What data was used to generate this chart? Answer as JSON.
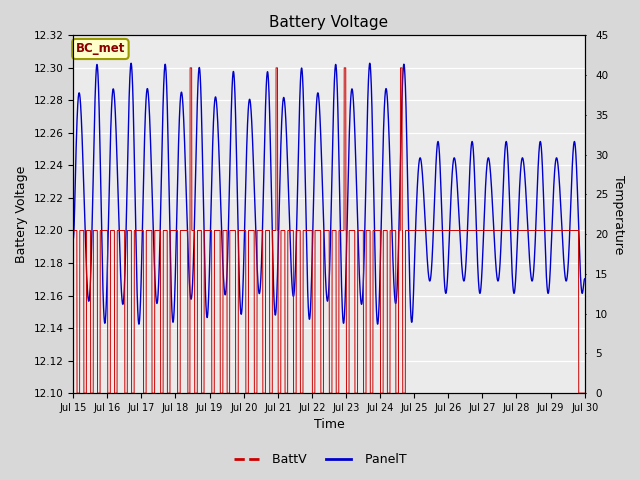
{
  "title": "Battery Voltage",
  "xlabel": "Time",
  "ylabel_left": "Battery Voltage",
  "ylabel_right": "Temperature",
  "ylim_left": [
    12.1,
    12.32
  ],
  "ylim_right": [
    0,
    45
  ],
  "yticks_left": [
    12.1,
    12.12,
    12.14,
    12.16,
    12.18,
    12.2,
    12.22,
    12.24,
    12.26,
    12.28,
    12.3,
    12.32
  ],
  "yticks_right": [
    0,
    5,
    10,
    15,
    20,
    25,
    30,
    35,
    40,
    45
  ],
  "xtick_labels": [
    "Jul 15",
    "Jul 16",
    "Jul 17",
    "Jul 18",
    "Jul 19",
    "Jul 20",
    "Jul 21",
    "Jul 22",
    "Jul 23",
    "Jul 24",
    "Jul 25",
    "Jul 26",
    "Jul 27",
    "Jul 28",
    "Jul 29",
    "Jul 30"
  ],
  "xtick_positions": [
    0,
    1,
    2,
    3,
    4,
    5,
    6,
    7,
    8,
    9,
    10,
    11,
    12,
    13,
    14,
    15
  ],
  "batt_color": "#cc0000",
  "panel_color": "#0000cc",
  "fig_bg_color": "#d8d8d8",
  "plot_bg_color": "#ebebeb",
  "annotation_text": "BC_met",
  "annotation_bg": "#ffffcc",
  "annotation_border": "#999900"
}
